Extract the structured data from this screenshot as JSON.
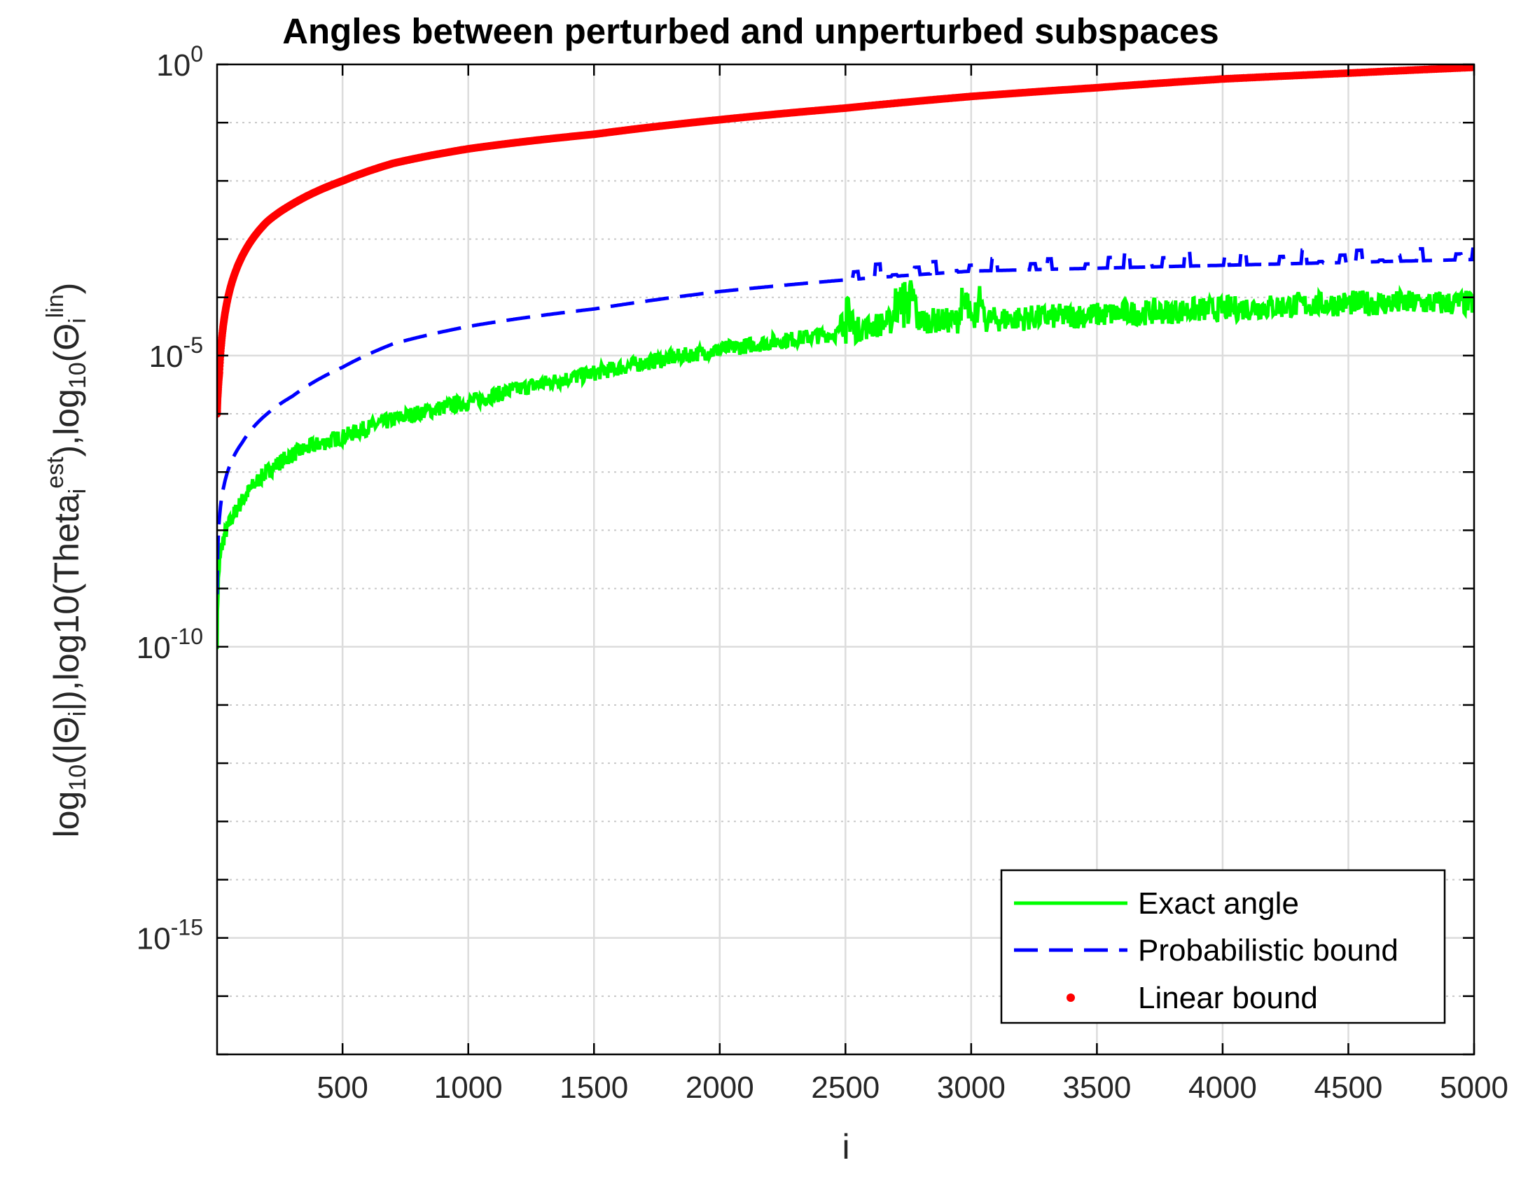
{
  "chart_data": {
    "type": "line",
    "title": "Angles between perturbed and unperturbed subspaces",
    "xlabel": "i",
    "ylabel": "log10(|Θi|),log10(Theta_i^est),log10(Θi^lin)",
    "xlim": [
      1,
      5000
    ],
    "ylim_log10": [
      -17,
      0
    ],
    "yscale": "log",
    "grid": true,
    "legend_position": "bottom-right",
    "x_ticks": [
      "500",
      "1000",
      "1500",
      "2000",
      "2500",
      "3000",
      "3500",
      "4000",
      "4500",
      "5000"
    ],
    "y_ticks": [
      {
        "base": "10",
        "exp": "0"
      },
      {
        "base": "10",
        "exp": "-5"
      },
      {
        "base": "10",
        "exp": "-10"
      },
      {
        "base": "10",
        "exp": "-15"
      }
    ],
    "series": [
      {
        "name": "Exact angle",
        "color": "#00ff00",
        "style": "solid",
        "log10_values": {
          "x": [
            1,
            10,
            30,
            60,
            100,
            200,
            300,
            500,
            700,
            1000,
            1500,
            2000,
            2500,
            2700,
            3000,
            3500,
            4000,
            4500,
            5000
          ],
          "y": [
            -9.9,
            -8.6,
            -8.1,
            -7.8,
            -7.5,
            -7.0,
            -6.7,
            -6.4,
            -6.1,
            -5.8,
            -5.3,
            -4.9,
            -4.6,
            -4.4,
            -4.4,
            -4.3,
            -4.2,
            -4.1,
            -4.1
          ]
        }
      },
      {
        "name": "Probabilistic bound",
        "color": "#0000ff",
        "style": "dashed",
        "log10_values": {
          "x": [
            1,
            10,
            30,
            60,
            100,
            200,
            300,
            500,
            700,
            1000,
            1500,
            2000,
            2500,
            3000,
            3500,
            4000,
            4500,
            5000
          ],
          "y": [
            -9.1,
            -7.8,
            -7.2,
            -6.8,
            -6.5,
            -6.0,
            -5.7,
            -5.2,
            -4.8,
            -4.5,
            -4.2,
            -3.9,
            -3.7,
            -3.55,
            -3.5,
            -3.45,
            -3.4,
            -3.35
          ]
        }
      },
      {
        "name": "Linear bound",
        "color": "#ff0000",
        "style": "dots",
        "log10_values": {
          "x": [
            1,
            5,
            10,
            20,
            50,
            100,
            200,
            300,
            500,
            700,
            1000,
            1500,
            2000,
            2500,
            3000,
            3500,
            4000,
            4500,
            5000
          ],
          "y": [
            -6,
            -5.6,
            -5.3,
            -4.7,
            -3.9,
            -3.3,
            -2.7,
            -2.4,
            -2.0,
            -1.7,
            -1.45,
            -1.2,
            -0.95,
            -0.75,
            -0.55,
            -0.4,
            -0.25,
            -0.15,
            -0.05
          ]
        }
      }
    ]
  }
}
